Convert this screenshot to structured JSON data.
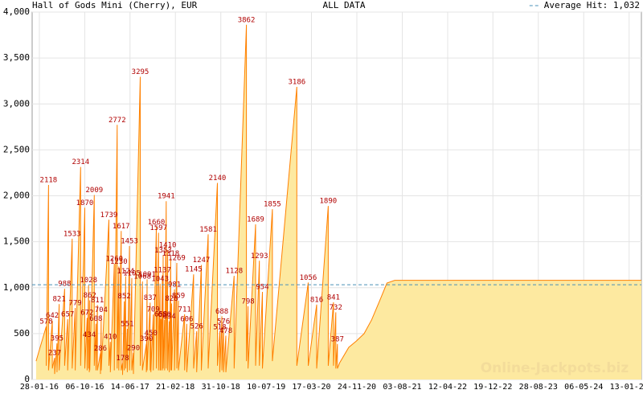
{
  "chart_data": {
    "type": "area",
    "title": "Hall of Gods Mini (Cherry), EUR",
    "subtitle": "ALL DATA",
    "watermark": "Online-Jackpots.biz",
    "average": {
      "value": 1032,
      "label": "Average Hit: 1,032",
      "color": "#4a90b8"
    },
    "xlim": [
      "2015-12-19",
      "2025-03-22"
    ],
    "xticks": [
      {
        "value": "2016-01-28",
        "label": "28-01-16"
      },
      {
        "value": "2016-10-06",
        "label": "06-10-16"
      },
      {
        "value": "2017-06-14",
        "label": "14-06-17"
      },
      {
        "value": "2018-02-21",
        "label": "21-02-18"
      },
      {
        "value": "2018-10-31",
        "label": "31-10-18"
      },
      {
        "value": "2019-07-10",
        "label": "10-07-19"
      },
      {
        "value": "2020-03-17",
        "label": "17-03-20"
      },
      {
        "value": "2020-11-24",
        "label": "24-11-20"
      },
      {
        "value": "2021-08-03",
        "label": "03-08-21"
      },
      {
        "value": "2022-04-12",
        "label": "12-04-22"
      },
      {
        "value": "2022-12-19",
        "label": "19-12-22"
      },
      {
        "value": "2023-08-28",
        "label": "28-08-23"
      },
      {
        "value": "2024-05-06",
        "label": "06-05-24"
      },
      {
        "value": "2025-01-13",
        "label": "13-01-25"
      }
    ],
    "ylim": [
      0,
      4000
    ],
    "yticks": [
      0,
      500,
      {
        "value": 1000,
        "label": "1,000"
      },
      {
        "value": 1500,
        "label": "1,500"
      },
      {
        "value": 2000,
        "label": "2,000"
      },
      {
        "value": 2500,
        "label": "2,500"
      },
      {
        "value": 3000,
        "label": "3,000"
      },
      {
        "value": 3500,
        "label": "3,500"
      },
      {
        "value": 4000,
        "label": "4,000"
      }
    ],
    "grid": true,
    "series": [
      {
        "color": "#ff8000",
        "fill": "#fde9a0",
        "x": [
          "2016-01-10",
          "2016-03-06",
          "2016-03-06",
          "2016-03-19",
          "2016-03-19",
          "2016-04-09",
          "2016-04-09",
          "2016-04-22",
          "2016-04-22",
          "2016-05-05",
          "2016-05-05",
          "2016-05-17",
          "2016-05-17",
          "2016-06-16",
          "2016-06-16",
          "2016-07-03",
          "2016-07-03",
          "2016-07-28",
          "2016-07-28",
          "2016-08-14",
          "2016-08-14",
          "2016-09-13",
          "2016-09-13",
          "2016-10-06",
          "2016-10-06",
          "2016-10-19",
          "2016-10-19",
          "2016-10-27",
          "2016-10-27",
          "2016-10-31",
          "2016-10-31",
          "2016-11-03",
          "2016-11-03",
          "2016-11-28",
          "2016-11-28",
          "2016-12-07",
          "2016-12-07",
          "2016-12-15",
          "2016-12-15",
          "2017-01-01",
          "2017-01-01",
          "2017-01-05",
          "2017-01-05",
          "2017-02-17",
          "2017-02-17",
          "2017-02-25",
          "2017-02-25",
          "2017-03-19",
          "2017-03-19",
          "2017-04-04",
          "2017-04-04",
          "2017-04-13",
          "2017-04-13",
          "2017-04-26",
          "2017-04-26",
          "2017-05-04",
          "2017-05-04",
          "2017-05-13",
          "2017-05-13",
          "2017-05-21",
          "2017-05-21",
          "2017-05-30",
          "2017-05-30",
          "2017-06-11",
          "2017-06-11",
          "2017-06-24",
          "2017-06-24",
          "2017-07-03",
          "2017-07-03",
          "2017-08-10",
          "2017-08-10",
          "2017-08-22",
          "2017-08-22",
          "2017-09-13",
          "2017-09-13",
          "2017-09-17",
          "2017-09-17",
          "2017-10-04",
          "2017-10-04",
          "2017-10-08",
          "2017-10-08",
          "2017-10-21",
          "2017-10-21",
          "2017-11-07",
          "2017-11-07",
          "2017-11-19",
          "2017-11-19",
          "2017-11-28",
          "2017-11-28",
          "2017-12-02",
          "2017-12-02",
          "2017-12-11",
          "2017-12-11",
          "2017-12-15",
          "2017-12-15",
          "2017-12-23",
          "2017-12-23",
          "2018-01-01",
          "2018-01-01",
          "2018-01-09",
          "2018-01-09",
          "2018-01-18",
          "2018-01-18",
          "2018-01-26",
          "2018-01-26",
          "2018-01-31",
          "2018-01-31",
          "2018-02-16",
          "2018-02-16",
          "2018-03-01",
          "2018-03-01",
          "2018-03-10",
          "2018-03-10",
          "2018-04-13",
          "2018-04-13",
          "2018-04-25",
          "2018-04-25",
          "2018-06-02",
          "2018-06-02",
          "2018-06-19",
          "2018-06-19",
          "2018-07-15",
          "2018-07-15",
          "2018-08-22",
          "2018-08-22",
          "2018-10-12",
          "2018-10-12",
          "2018-10-25",
          "2018-10-25",
          "2018-11-06",
          "2018-11-06",
          "2018-11-15",
          "2018-11-15",
          "2018-11-28",
          "2018-11-28",
          "2019-01-13",
          "2019-01-13",
          "2019-03-22",
          "2019-03-22",
          "2019-03-31",
          "2019-03-31",
          "2019-05-12",
          "2019-05-12",
          "2019-06-02",
          "2019-06-02",
          "2019-06-19",
          "2019-06-19",
          "2019-08-13",
          "2019-08-13",
          "2019-12-27",
          "2019-12-27",
          "2020-02-28",
          "2020-02-28",
          "2020-04-15",
          "2020-04-15",
          "2020-06-18",
          "2020-06-18",
          "2020-07-17",
          "2020-07-17",
          "2020-07-30",
          "2020-07-30",
          "2020-08-08",
          "2020-08-08",
          "2020-08-20",
          "2020-10-10",
          "2020-11-22",
          "2021-01-03",
          "2021-02-14",
          "2021-03-29",
          "2021-05-10",
          "2021-06-22",
          "2025-03-22"
        ],
        "values": [
          200,
          578,
          150,
          2118,
          100,
          642,
          120,
          237,
          60,
          395,
          80,
          821,
          100,
          988,
          150,
          657,
          100,
          1533,
          120,
          779,
          100,
          2314,
          150,
          1870,
          120,
          672,
          100,
          1028,
          120,
          434,
          80,
          862,
          100,
          2009,
          150,
          608,
          100,
          811,
          100,
          286,
          60,
          704,
          100,
          1739,
          150,
          410,
          80,
          1260,
          100,
          2772,
          120,
          1230,
          100,
          1617,
          100,
          178,
          50,
          852,
          100,
          1124,
          120,
          551,
          80,
          1453,
          100,
          1105,
          100,
          290,
          60,
          3295,
          150,
          1068,
          100,
          390,
          80,
          1091,
          100,
          837,
          100,
          450,
          80,
          709,
          100,
          1660,
          120,
          1597,
          100,
          1043,
          100,
          658,
          100,
          1137,
          100,
          1353,
          120,
          650,
          100,
          1941,
          120,
          1410,
          100,
          634,
          80,
          1318,
          100,
          828,
          100,
          981,
          100,
          1269,
          120,
          859,
          100,
          711,
          100,
          606,
          80,
          1145,
          120,
          526,
          80,
          1247,
          100,
          1581,
          120,
          2140,
          150,
          518,
          80,
          688,
          100,
          576,
          80,
          478,
          80,
          1128,
          120,
          3862,
          200,
          798,
          120,
          1689,
          150,
          1293,
          150,
          954,
          120,
          1855,
          200,
          3186,
          150,
          1056,
          150,
          816,
          120,
          1890,
          150,
          841,
          150,
          732,
          120,
          387,
          120,
          180,
          350,
          420,
          500,
          650,
          850,
          1050,
          1080,
          1080
        ],
        "value_labels": [
          null,
          "578",
          null,
          "2118",
          null,
          "642",
          null,
          "237",
          null,
          "395",
          null,
          "821",
          null,
          "988",
          null,
          "657",
          null,
          "1533",
          null,
          "779",
          null,
          "2314",
          null,
          "1870",
          null,
          "672",
          null,
          "1028",
          null,
          "434",
          null,
          "862",
          null,
          "2009",
          null,
          "608",
          null,
          "811",
          null,
          "286",
          null,
          "704",
          null,
          "1739",
          null,
          "410",
          null,
          "1260",
          null,
          "2772",
          null,
          "1230",
          null,
          "1617",
          null,
          "178",
          null,
          "852",
          null,
          "1124",
          null,
          "551",
          null,
          "1453",
          null,
          "1105",
          null,
          "290",
          null,
          "3295",
          null,
          "1068",
          null,
          "390",
          null,
          "1091",
          null,
          "837",
          null,
          "450",
          null,
          "709",
          null,
          "1660",
          null,
          "1597",
          null,
          "1043",
          null,
          "658",
          null,
          "1137",
          null,
          "1353",
          null,
          "650",
          null,
          "1941",
          null,
          "1410",
          null,
          "634",
          null,
          "1318",
          null,
          "828",
          null,
          "981",
          null,
          "1269",
          null,
          "859",
          null,
          "711",
          null,
          "606",
          null,
          "1145",
          null,
          "526",
          null,
          "1247",
          null,
          "1581",
          null,
          "2140",
          null,
          "518",
          null,
          "688",
          null,
          "576",
          null,
          "478",
          null,
          "1128",
          null,
          "3862",
          null,
          "798",
          null,
          "1689",
          null,
          "1293",
          null,
          "954",
          null,
          "1855",
          null,
          "3186",
          null,
          "1056",
          null,
          "816",
          null,
          "1890",
          null,
          "841",
          null,
          "732",
          null,
          "387",
          null,
          null,
          null,
          null,
          null,
          null,
          null,
          null,
          null,
          null
        ]
      }
    ]
  }
}
